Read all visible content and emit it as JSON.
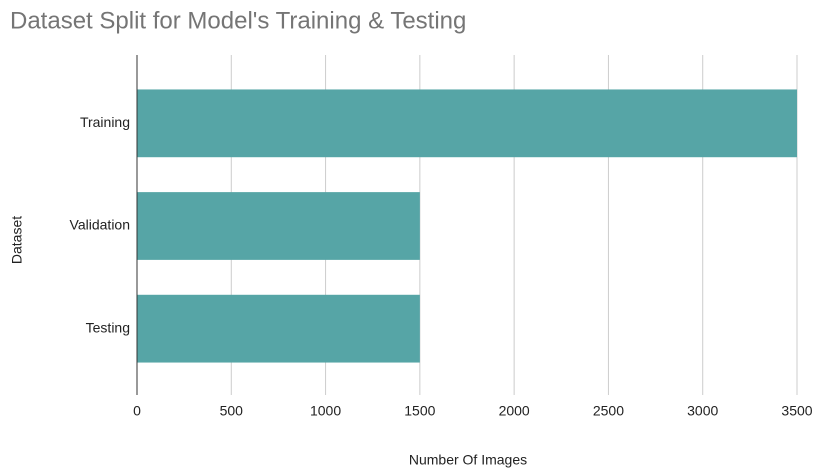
{
  "chart_data": {
    "type": "hbar",
    "title": "Dataset Split for Model's Training & Testing",
    "categories": [
      "Training",
      "Validation",
      "Testing"
    ],
    "values": [
      3500,
      1500,
      1500
    ],
    "color": "#56a5a6",
    "xlabel": "Number Of Images",
    "ylabel": "Dataset",
    "xlim": [
      0,
      3500
    ],
    "xticks": [
      0,
      500,
      1000,
      1500,
      2000,
      2500,
      3000,
      3500
    ],
    "grid": true
  }
}
